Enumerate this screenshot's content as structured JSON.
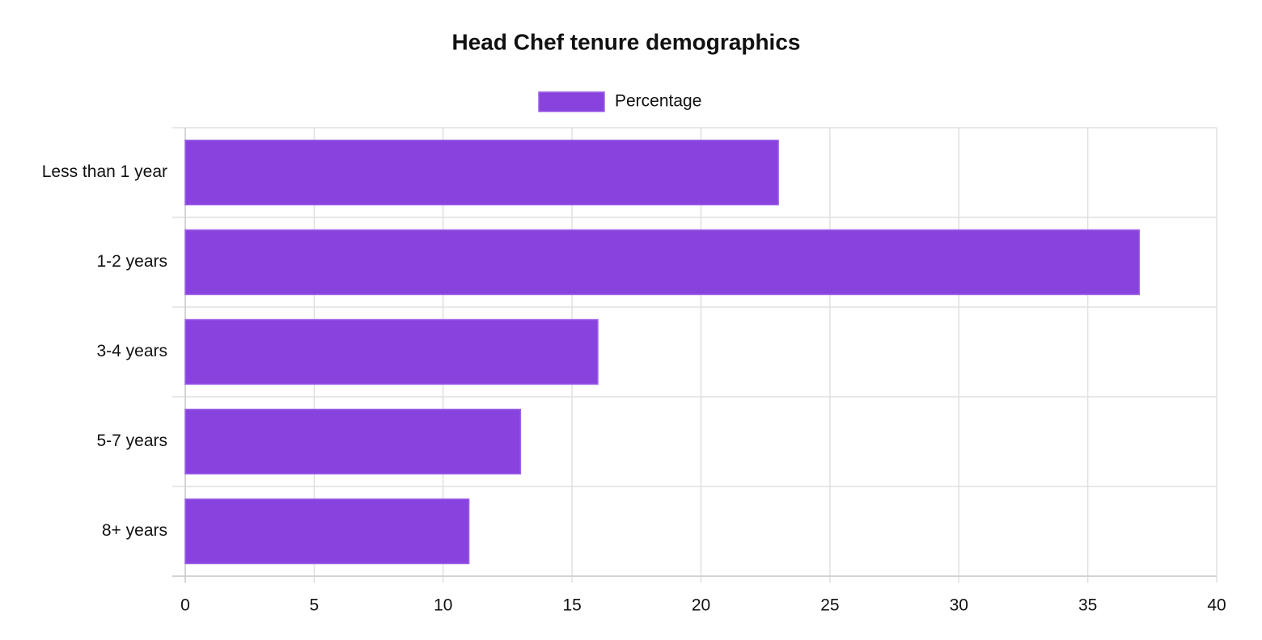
{
  "chart_data": {
    "type": "bar",
    "orientation": "horizontal",
    "title": "Head Chef tenure demographics",
    "categories": [
      "Less than 1 year",
      "1-2 years",
      "3-4 years",
      "5-7 years",
      "8+ years"
    ],
    "series": [
      {
        "name": "Percentage",
        "color": "#8842de",
        "values": [
          23,
          37,
          16,
          13,
          11
        ]
      }
    ],
    "xlim": [
      0,
      40
    ],
    "xticks": [
      0,
      5,
      10,
      15,
      20,
      25,
      30,
      35,
      40
    ],
    "grid": true,
    "legend": "top"
  }
}
